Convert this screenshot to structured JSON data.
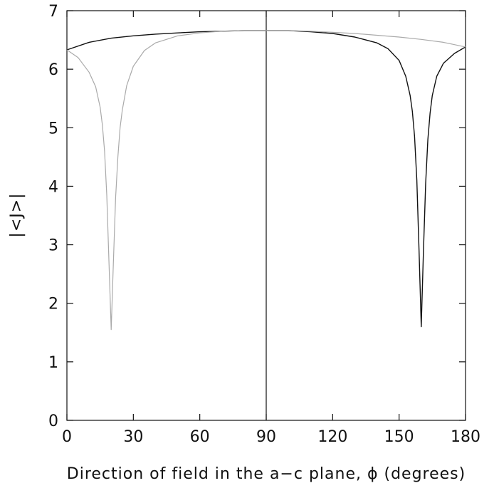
{
  "chart_data": {
    "type": "line",
    "xlabel": "Direction of field in the a−c plane, ϕ (degrees)",
    "ylabel": "|<J>|",
    "xlim": [
      0,
      180
    ],
    "ylim": [
      0,
      7
    ],
    "x_ticks": [
      "0",
      "30",
      "60",
      "90",
      "120",
      "150",
      "180"
    ],
    "y_ticks": [
      "0",
      "1",
      "2",
      "3",
      "4",
      "5",
      "6",
      "7"
    ],
    "grid": false,
    "vertical_marker_x": 90,
    "series": [
      {
        "color": "#111111",
        "x": [
          0,
          10,
          20,
          30,
          40,
          50,
          60,
          70,
          80,
          90,
          100,
          110,
          120,
          130,
          140,
          145,
          150,
          153,
          155,
          156,
          157,
          158,
          159,
          160,
          161,
          162,
          163,
          164,
          165,
          167,
          170,
          175,
          180
        ],
        "y": [
          6.33,
          6.46,
          6.53,
          6.57,
          6.6,
          6.62,
          6.64,
          6.65,
          6.66,
          6.66,
          6.66,
          6.64,
          6.61,
          6.55,
          6.45,
          6.35,
          6.15,
          5.88,
          5.55,
          5.28,
          4.85,
          4.1,
          2.9,
          1.6,
          2.9,
          4.05,
          4.8,
          5.25,
          5.55,
          5.88,
          6.1,
          6.27,
          6.38
        ]
      },
      {
        "color": "#aaaaaa",
        "x": [
          0,
          5,
          10,
          13,
          15,
          16,
          17,
          18,
          19,
          20,
          21,
          22,
          23,
          24,
          25,
          27,
          30,
          35,
          40,
          50,
          60,
          70,
          80,
          90,
          100,
          110,
          120,
          130,
          140,
          150,
          160,
          170,
          180
        ],
        "y": [
          6.33,
          6.2,
          5.95,
          5.7,
          5.35,
          5.05,
          4.6,
          3.85,
          2.7,
          1.55,
          2.7,
          3.8,
          4.5,
          5.0,
          5.3,
          5.72,
          6.05,
          6.32,
          6.45,
          6.57,
          6.62,
          6.65,
          6.66,
          6.66,
          6.66,
          6.65,
          6.63,
          6.61,
          6.58,
          6.55,
          6.51,
          6.46,
          6.38
        ]
      }
    ]
  }
}
